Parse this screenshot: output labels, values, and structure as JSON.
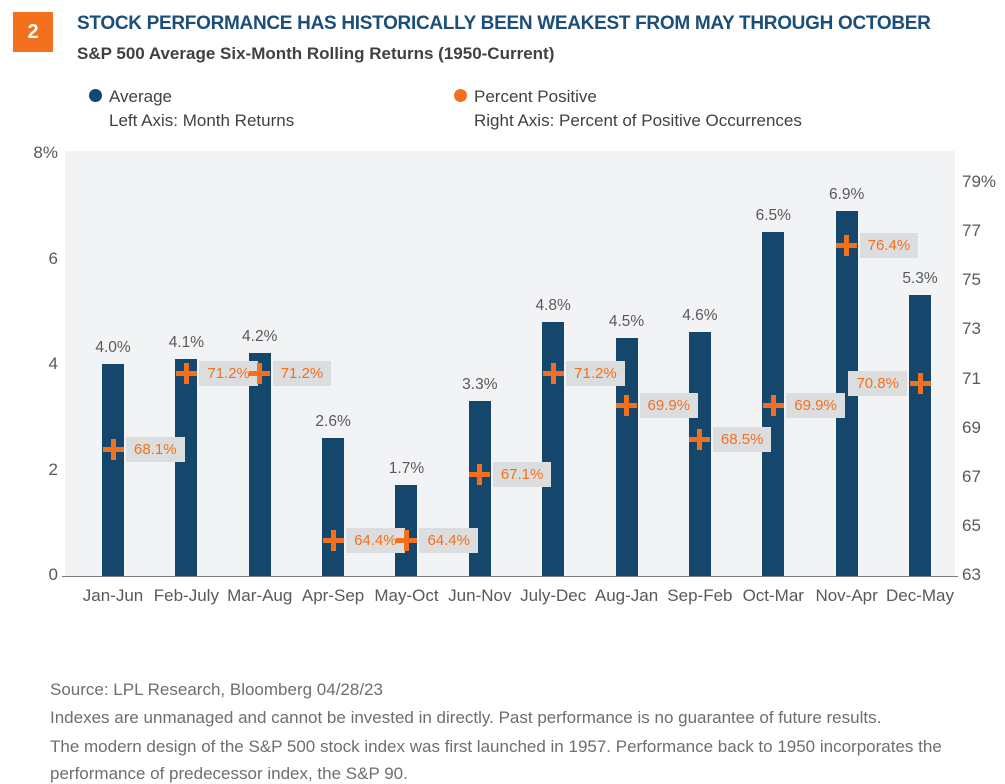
{
  "header": {
    "badge": "2",
    "title": "STOCK PERFORMANCE HAS HISTORICALLY BEEN WEAKEST FROM MAY THROUGH OCTOBER",
    "subtitle": "S&P 500 Average Six-Month Rolling Returns (1950-Current)"
  },
  "legend": {
    "items": [
      {
        "label": "Average",
        "sublabel": "Left Axis: Month Returns",
        "color": "#15466B"
      },
      {
        "label": "Percent Positive",
        "sublabel": "Right Axis: Percent of Positive Occurrences",
        "color": "#F3701E"
      }
    ]
  },
  "chart_data": {
    "type": "bar",
    "title": "S&P 500 Average Six-Month Rolling Returns (1950-Current)",
    "categories": [
      "Jan-Jun",
      "Feb-July",
      "Mar-Aug",
      "Apr-Sep",
      "May-Oct",
      "Jun-Nov",
      "July-Dec",
      "Aug-Jan",
      "Sep-Feb",
      "Oct-Mar",
      "Nov-Apr",
      "Dec-May"
    ],
    "series": [
      {
        "name": "Average",
        "axis": "left",
        "type": "bar",
        "values": [
          4.0,
          4.1,
          4.2,
          2.6,
          1.7,
          3.3,
          4.8,
          4.5,
          4.6,
          6.5,
          6.9,
          5.3
        ],
        "labels": [
          "4.0%",
          "4.1%",
          "4.2%",
          "2.6%",
          "1.7%",
          "3.3%",
          "4.8%",
          "4.5%",
          "4.6%",
          "6.5%",
          "6.9%",
          "5.3%"
        ]
      },
      {
        "name": "Percent Positive",
        "axis": "right",
        "type": "marker-plus",
        "values": [
          68.1,
          71.2,
          71.2,
          64.4,
          64.4,
          67.1,
          71.2,
          69.9,
          68.5,
          69.9,
          76.4,
          70.8
        ],
        "labels": [
          "68.1%",
          "71.2%",
          "71.2%",
          "64.4%",
          "64.4%",
          "67.1%",
          "71.2%",
          "69.9%",
          "68.5%",
          "69.9%",
          "76.4%",
          "70.8%"
        ],
        "label_side": [
          "right",
          "right",
          "right",
          "right",
          "right",
          "right",
          "right",
          "right",
          "right",
          "right",
          "right",
          "left"
        ]
      }
    ],
    "left_axis": {
      "ticks": [
        "8%",
        "6",
        "4",
        "2",
        "0"
      ],
      "tick_values": [
        8,
        6,
        4,
        2,
        0
      ],
      "range": [
        0,
        8
      ],
      "label": "Month Returns"
    },
    "right_axis": {
      "ticks": [
        "79%",
        "77",
        "75",
        "73",
        "71",
        "69",
        "67",
        "65",
        "63"
      ],
      "tick_values": [
        79,
        77,
        75,
        73,
        71,
        69,
        67,
        65,
        63
      ],
      "range": [
        63,
        79
      ],
      "label": "Percent of Positive Occurrences"
    },
    "grid": false,
    "legend_position": "top"
  },
  "colors": {
    "bar_navy": "#15466B",
    "accent_orange": "#F3701E",
    "title_navy": "#1B4E79",
    "plot_background": "#F2F3F4",
    "chip_background": "#DCDDDE",
    "axis_text": "#58595B",
    "footer_text": "#6D6E71"
  },
  "footer": {
    "source": "Source: LPL Research, Bloomberg  04/28/23",
    "line1": "Indexes are unmanaged and cannot be invested in directly. Past performance is no guarantee of future results.",
    "para2": "The modern design of the S&P 500 stock index was first launched in 1957. Performance back to 1950 incorporates the performance of predecessor index, the S&P 90."
  }
}
